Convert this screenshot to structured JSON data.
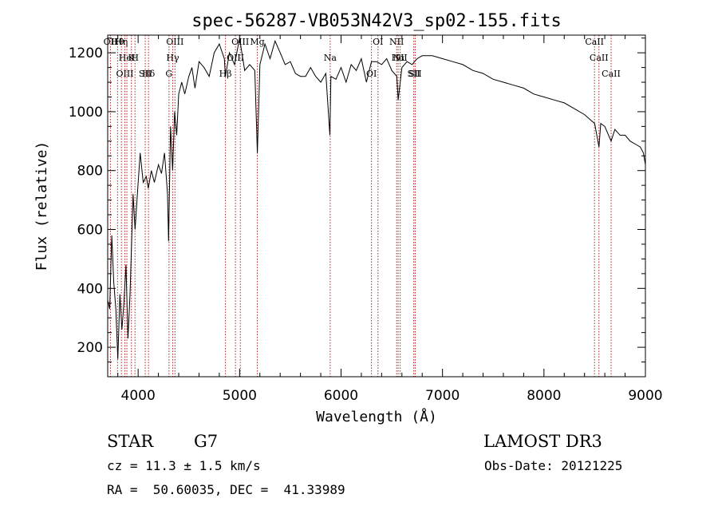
{
  "chart_data": {
    "type": "line",
    "title": "spec-56287-VB053N42V3_sp02-155.fits",
    "xlabel": "Wavelength (Å)",
    "ylabel": "Flux (relative)",
    "xlim": [
      3700,
      9000
    ],
    "ylim": [
      100,
      1260
    ],
    "xticks": [
      4000,
      5000,
      6000,
      7000,
      8000,
      9000
    ],
    "yticks": [
      200,
      400,
      600,
      800,
      1000,
      1200
    ],
    "grid": false,
    "series": [
      {
        "name": "flux",
        "x": [
          3700,
          3720,
          3740,
          3760,
          3780,
          3800,
          3820,
          3840,
          3860,
          3880,
          3900,
          3920,
          3950,
          3970,
          4000,
          4020,
          4050,
          4080,
          4100,
          4130,
          4160,
          4200,
          4230,
          4260,
          4290,
          4300,
          4320,
          4340,
          4360,
          4380,
          4400,
          4430,
          4460,
          4500,
          4530,
          4560,
          4600,
          4650,
          4700,
          4750,
          4800,
          4850,
          4861,
          4900,
          4950,
          5000,
          5050,
          5100,
          5150,
          5175,
          5200,
          5250,
          5300,
          5350,
          5400,
          5450,
          5500,
          5550,
          5600,
          5650,
          5700,
          5750,
          5800,
          5850,
          5890,
          5900,
          5950,
          6000,
          6050,
          6100,
          6150,
          6200,
          6250,
          6300,
          6350,
          6400,
          6450,
          6500,
          6550,
          6563,
          6600,
          6650,
          6700,
          6750,
          6800,
          6900,
          7000,
          7100,
          7200,
          7300,
          7400,
          7500,
          7600,
          7700,
          7800,
          7900,
          8000,
          8100,
          8200,
          8300,
          8400,
          8450,
          8500,
          8542,
          8560,
          8600,
          8662,
          8700,
          8750,
          8800,
          8850,
          8900,
          8950,
          8980,
          9000
        ],
        "values": [
          360,
          330,
          580,
          420,
          330,
          160,
          380,
          260,
          350,
          480,
          230,
          380,
          720,
          600,
          760,
          860,
          760,
          780,
          740,
          800,
          760,
          820,
          790,
          860,
          720,
          560,
          950,
          800,
          1000,
          920,
          1060,
          1100,
          1060,
          1120,
          1150,
          1080,
          1170,
          1150,
          1120,
          1200,
          1230,
          1180,
          1120,
          1200,
          1160,
          1250,
          1140,
          1160,
          1140,
          860,
          1160,
          1230,
          1180,
          1240,
          1200,
          1160,
          1170,
          1130,
          1120,
          1120,
          1150,
          1120,
          1100,
          1130,
          920,
          1120,
          1110,
          1150,
          1100,
          1160,
          1140,
          1180,
          1100,
          1170,
          1170,
          1160,
          1180,
          1140,
          1120,
          1040,
          1150,
          1170,
          1160,
          1180,
          1190,
          1190,
          1180,
          1170,
          1160,
          1140,
          1130,
          1110,
          1100,
          1090,
          1080,
          1060,
          1050,
          1040,
          1030,
          1010,
          990,
          975,
          960,
          880,
          960,
          950,
          900,
          940,
          920,
          920,
          900,
          890,
          880,
          860,
          820
        ]
      }
    ],
    "line_markers": [
      {
        "label": "Hθ",
        "x": 3797
      },
      {
        "label": "K",
        "x": 3934
      },
      {
        "label": "Hδ",
        "x": 4102
      },
      {
        "label": "OII",
        "x": 3727
      },
      {
        "label": "HeI",
        "x": 3889
      },
      {
        "label": "SII",
        "x": 4070
      },
      {
        "label": "OIII",
        "x": 4363
      },
      {
        "label": "Hγ",
        "x": 4341
      },
      {
        "label": "OIII",
        "x": 3869
      },
      {
        "label": "Hη",
        "x": 3835
      },
      {
        "label": "H",
        "x": 3969
      },
      {
        "label": "G",
        "x": 4304
      },
      {
        "label": "OIII",
        "x": 5007
      },
      {
        "label": "OIII",
        "x": 4959
      },
      {
        "label": "Hβ",
        "x": 4861
      },
      {
        "label": "Mg",
        "x": 5175
      },
      {
        "label": "Na",
        "x": 5893
      },
      {
        "label": "OI",
        "x": 6300
      },
      {
        "label": "OI",
        "x": 6364
      },
      {
        "label": "Hα",
        "x": 6563
      },
      {
        "label": "SII",
        "x": 6717
      },
      {
        "label": "NII",
        "x": 6548
      },
      {
        "label": "NII",
        "x": 6583
      },
      {
        "label": "SII",
        "x": 6731
      },
      {
        "label": "CaII",
        "x": 8498
      },
      {
        "label": "CaII",
        "x": 8542
      },
      {
        "label": "CaII",
        "x": 8662
      }
    ]
  },
  "info": {
    "object_class": "STAR",
    "subclass": "G7",
    "survey": "LAMOST DR3",
    "cz": "cz = 11.3 ± 1.5 km/s",
    "obs_date": "Obs-Date: 20121225",
    "coords": "RA =  50.60035, DEC =  41.33989"
  },
  "colors": {
    "axis": "#000000",
    "spectrum": "#000000",
    "marker_line": "#b22222",
    "background": "#ffffff"
  }
}
